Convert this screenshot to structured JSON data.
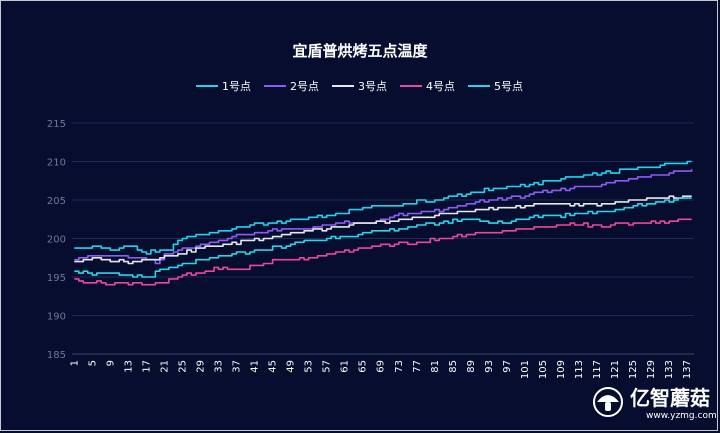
{
  "chart_data": {
    "type": "line",
    "title": "宜盾普烘烤五点温度",
    "xlabel": "",
    "ylabel": "",
    "ylim": [
      185,
      215
    ],
    "yticks": [
      185,
      190,
      195,
      200,
      205,
      210,
      215
    ],
    "x_range": [
      1,
      138
    ],
    "x_tick_labels": [
      "1",
      "5",
      "9",
      "13",
      "17",
      "21",
      "25",
      "29",
      "33",
      "37",
      "41",
      "45",
      "49",
      "53",
      "57",
      "61",
      "65",
      "69",
      "73",
      "77",
      "81",
      "85",
      "89",
      "93",
      "97",
      "101",
      "105",
      "109",
      "113",
      "117",
      "121",
      "125",
      "129",
      "133",
      "137"
    ],
    "legend_position": "top",
    "grid": true,
    "series": [
      {
        "name": "1号点",
        "color": "#22d3ee",
        "keypoints": [
          [
            1,
            198.7
          ],
          [
            5,
            199.0
          ],
          [
            9,
            198.5
          ],
          [
            13,
            199.0
          ],
          [
            17,
            198.2
          ],
          [
            21,
            198.3
          ],
          [
            25,
            200.0
          ],
          [
            29,
            200.5
          ],
          [
            33,
            201.0
          ],
          [
            37,
            201.4
          ],
          [
            41,
            201.8
          ],
          [
            45,
            202.0
          ],
          [
            49,
            202.4
          ],
          [
            53,
            202.7
          ],
          [
            57,
            203.0
          ],
          [
            61,
            203.3
          ],
          [
            65,
            204.0
          ],
          [
            69,
            204.2
          ],
          [
            73,
            204.4
          ],
          [
            77,
            204.8
          ],
          [
            81,
            205.0
          ],
          [
            85,
            205.5
          ],
          [
            89,
            206.0
          ],
          [
            93,
            206.3
          ],
          [
            97,
            206.7
          ],
          [
            101,
            207.0
          ],
          [
            105,
            207.3
          ],
          [
            109,
            207.7
          ],
          [
            113,
            208.0
          ],
          [
            117,
            208.4
          ],
          [
            121,
            208.7
          ],
          [
            125,
            209.0
          ],
          [
            129,
            209.4
          ],
          [
            133,
            209.7
          ],
          [
            138,
            210.0
          ]
        ]
      },
      {
        "name": "2号点",
        "color": "#8b5cf6",
        "keypoints": [
          [
            1,
            197.3
          ],
          [
            5,
            197.8
          ],
          [
            9,
            197.8
          ],
          [
            13,
            197.5
          ],
          [
            17,
            197.3
          ],
          [
            19,
            196.7
          ],
          [
            21,
            198.0
          ],
          [
            25,
            198.7
          ],
          [
            29,
            199.2
          ],
          [
            33,
            199.7
          ],
          [
            37,
            200.3
          ],
          [
            41,
            200.7
          ],
          [
            45,
            201.0
          ],
          [
            49,
            201.2
          ],
          [
            53,
            201.4
          ],
          [
            57,
            201.7
          ],
          [
            61,
            202.0
          ],
          [
            65,
            202.0
          ],
          [
            69,
            202.3
          ],
          [
            71,
            202.8
          ],
          [
            73,
            203.0
          ],
          [
            77,
            203.3
          ],
          [
            81,
            203.6
          ],
          [
            85,
            204.0
          ],
          [
            89,
            204.6
          ],
          [
            93,
            205.0
          ],
          [
            97,
            205.3
          ],
          [
            101,
            205.6
          ],
          [
            105,
            206.0
          ],
          [
            109,
            206.3
          ],
          [
            113,
            206.7
          ],
          [
            117,
            207.0
          ],
          [
            121,
            207.4
          ],
          [
            125,
            207.8
          ],
          [
            129,
            208.2
          ],
          [
            133,
            208.6
          ],
          [
            138,
            209.0
          ]
        ]
      },
      {
        "name": "3号点",
        "color": "#e5e7eb",
        "keypoints": [
          [
            1,
            197.0
          ],
          [
            5,
            197.4
          ],
          [
            9,
            197.2
          ],
          [
            13,
            197.0
          ],
          [
            17,
            197.3
          ],
          [
            21,
            197.6
          ],
          [
            25,
            198.2
          ],
          [
            29,
            198.7
          ],
          [
            33,
            199.1
          ],
          [
            37,
            199.5
          ],
          [
            41,
            199.9
          ],
          [
            45,
            200.3
          ],
          [
            49,
            200.7
          ],
          [
            53,
            201.0
          ],
          [
            57,
            201.3
          ],
          [
            61,
            201.6
          ],
          [
            65,
            201.9
          ],
          [
            69,
            202.1
          ],
          [
            73,
            202.4
          ],
          [
            77,
            202.7
          ],
          [
            81,
            203.0
          ],
          [
            85,
            203.3
          ],
          [
            89,
            203.6
          ],
          [
            93,
            203.8
          ],
          [
            97,
            204.0
          ],
          [
            101,
            204.3
          ],
          [
            105,
            204.5
          ],
          [
            109,
            204.5
          ],
          [
            113,
            204.4
          ],
          [
            117,
            204.5
          ],
          [
            121,
            204.7
          ],
          [
            125,
            204.9
          ],
          [
            129,
            205.1
          ],
          [
            133,
            205.3
          ],
          [
            138,
            205.5
          ]
        ]
      },
      {
        "name": "4号点",
        "color": "#ec4899",
        "keypoints": [
          [
            1,
            194.6
          ],
          [
            5,
            194.4
          ],
          [
            9,
            194.1
          ],
          [
            13,
            194.1
          ],
          [
            15,
            194.3
          ],
          [
            17,
            193.9
          ],
          [
            21,
            194.3
          ],
          [
            25,
            195.2
          ],
          [
            29,
            195.6
          ],
          [
            33,
            196.1
          ],
          [
            37,
            196.0
          ],
          [
            41,
            196.4
          ],
          [
            45,
            197.0
          ],
          [
            49,
            197.3
          ],
          [
            53,
            197.6
          ],
          [
            57,
            197.9
          ],
          [
            61,
            198.3
          ],
          [
            65,
            198.7
          ],
          [
            69,
            199.1
          ],
          [
            73,
            199.3
          ],
          [
            77,
            199.5
          ],
          [
            81,
            199.9
          ],
          [
            85,
            200.2
          ],
          [
            89,
            200.5
          ],
          [
            93,
            200.8
          ],
          [
            97,
            201.0
          ],
          [
            101,
            201.2
          ],
          [
            105,
            201.5
          ],
          [
            109,
            201.7
          ],
          [
            113,
            201.8
          ],
          [
            117,
            201.6
          ],
          [
            121,
            201.8
          ],
          [
            125,
            202.0
          ],
          [
            129,
            202.1
          ],
          [
            133,
            202.2
          ],
          [
            138,
            202.5
          ]
        ]
      },
      {
        "name": "5号点",
        "color": "#2dd4e8",
        "keypoints": [
          [
            1,
            195.8
          ],
          [
            5,
            195.4
          ],
          [
            9,
            195.3
          ],
          [
            13,
            195.2
          ],
          [
            17,
            195.0
          ],
          [
            21,
            196.0
          ],
          [
            25,
            196.6
          ],
          [
            29,
            197.1
          ],
          [
            33,
            197.6
          ],
          [
            37,
            198.0
          ],
          [
            41,
            198.4
          ],
          [
            45,
            198.8
          ],
          [
            49,
            199.2
          ],
          [
            53,
            199.7
          ],
          [
            57,
            200.0
          ],
          [
            61,
            200.3
          ],
          [
            65,
            200.6
          ],
          [
            69,
            201.0
          ],
          [
            73,
            201.3
          ],
          [
            77,
            201.6
          ],
          [
            81,
            201.9
          ],
          [
            85,
            202.3
          ],
          [
            89,
            202.5
          ],
          [
            93,
            202.2
          ],
          [
            97,
            202.1
          ],
          [
            101,
            202.6
          ],
          [
            105,
            203.0
          ],
          [
            109,
            203.0
          ],
          [
            113,
            203.2
          ],
          [
            117,
            203.5
          ],
          [
            121,
            203.8
          ],
          [
            125,
            204.2
          ],
          [
            129,
            204.6
          ],
          [
            133,
            205.0
          ],
          [
            138,
            205.3
          ]
        ]
      }
    ]
  },
  "watermark": {
    "brand": "亿智蘑菇",
    "url": "www.yzmg.com",
    "icon": "mushroom-icon"
  }
}
